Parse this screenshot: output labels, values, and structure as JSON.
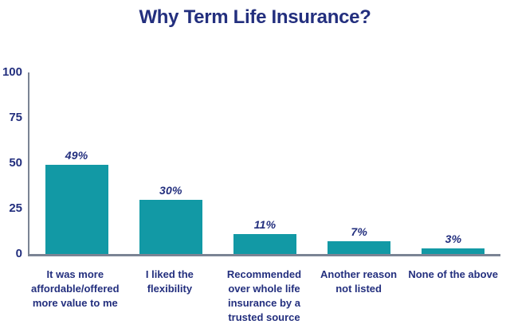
{
  "colors": {
    "navy": "#232f7e",
    "teal": "#1299a5",
    "axis": "#7b8494",
    "background": "#ffffff"
  },
  "chart_data": {
    "type": "bar",
    "title": "Why Term Life Insurance?",
    "categories": [
      "It was more affordable/offered more value to me",
      "I liked the flexibility",
      "Recommended over whole life insurance by a trusted source",
      "Another reason not listed",
      "None of the above"
    ],
    "category_lines": [
      [
        "It was more",
        "affordable/offered",
        "more value to me"
      ],
      [
        "I liked the",
        "flexibility"
      ],
      [
        "Recommended",
        "over whole life",
        "insurance by a",
        "trusted source"
      ],
      [
        "Another reason",
        "not listed"
      ],
      [
        "None of the above"
      ]
    ],
    "values": [
      49,
      30,
      11,
      7,
      3
    ],
    "value_labels": [
      "49%",
      "30%",
      "11%",
      "7%",
      "3%"
    ],
    "y_ticks": [
      0,
      25,
      50,
      75,
      100
    ],
    "ylim": [
      0,
      100
    ],
    "xlabel": "",
    "ylabel": "",
    "grid": false,
    "legend": null,
    "bar_color": "#1299a5",
    "label_color": "#232f7e"
  }
}
